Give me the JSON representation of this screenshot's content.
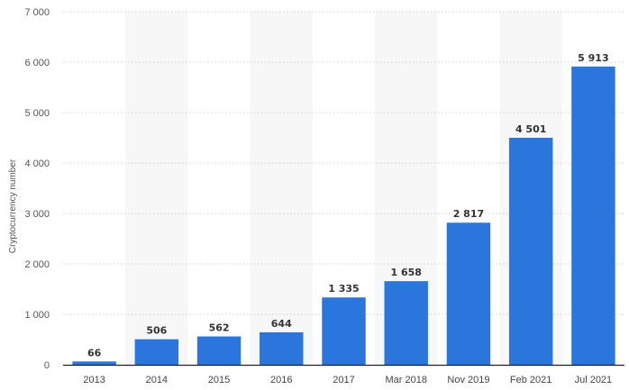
{
  "chart_data": {
    "type": "bar",
    "categories": [
      "2013",
      "2014",
      "2015",
      "2016",
      "2017",
      "Mar 2018",
      "Nov 2019",
      "Feb 2021",
      "Jul 2021"
    ],
    "values": [
      66,
      506,
      562,
      644,
      1335,
      1658,
      2817,
      4501,
      5913
    ],
    "value_labels": [
      "66",
      "506",
      "562",
      "644",
      "1 335",
      "1 658",
      "2 817",
      "4 501",
      "5 913"
    ],
    "ylabel": "Cryptocurrency number",
    "xlabel": "",
    "ylim": [
      0,
      7000
    ],
    "yticks": [
      0,
      1000,
      2000,
      3000,
      4000,
      5000,
      6000,
      7000
    ],
    "ytick_labels": [
      "0",
      "1 000",
      "2 000",
      "3 000",
      "4 000",
      "5 000",
      "6 000",
      "7 000"
    ],
    "grid": true,
    "bar_color": "#2a76dd",
    "band_color": "#f7f7f7"
  }
}
